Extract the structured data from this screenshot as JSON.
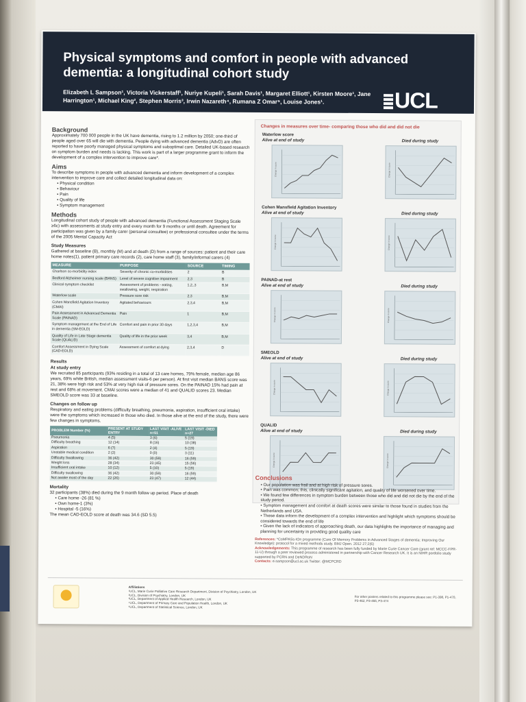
{
  "poster": {
    "title": "Physical symptoms and comfort in people with advanced dementia: a longitudinal cohort study",
    "authors": "Elizabeth L Sampson¹, Victoria Vickerstaff¹, Nuriye Kupeli¹, Sarah Davis¹, Margaret Elliott¹, Kirsten Moore¹, Jane Harrington¹, Michael King², Stephen Morris³, Irwin Nazareth⁴, Rumana Z Omar⁵, Louise Jones¹.",
    "logo": "UCL"
  },
  "background": {
    "heading": "Background",
    "text": "Approximately 700 000 people in the UK have dementia, rising to 1.2 million by 2050; one-third of people aged over 65 will die with dementia. People dying with advanced dementia (AdvD) are often reported to have poorly managed physical symptoms and suboptimal care. Detailed UK-based research on symptom burden and needs is lacking. This work is part of a larger programme grant to inform the development of a complex intervention to improve care*."
  },
  "aims": {
    "heading": "Aims",
    "text": "To describe symptoms in people with advanced dementia and inform development of a complex intervention to improve care and collect detailed longitudinal data on:",
    "items": [
      "Physical condition",
      "Behaviour",
      "Pain",
      "Quality of life",
      "Symptom management"
    ]
  },
  "methods": {
    "heading": "Methods",
    "text": "Longitudinal cohort study of people with advanced dementia (Functional Assessment Staging Scale ≥6c) with assessments at study entry and every month for 9 months or until death. Agreement for participation was given by a family carer (personal consultee) or professional consultee under the terms of the 2005 Mental Capacity Act",
    "measures_heading": "Study Measures",
    "measures_text": "Gathered at baseline (B), monthly (M) and at death (D) from a range of sources: patient and their care home notes(1), patient primary care records (2), care home staff (3), family/informal carers (4)",
    "table_headers": [
      "MEASURE",
      "PURPOSE",
      "SOURCE",
      "TIMING"
    ],
    "table_rows": [
      [
        "Charlson co-morbidity index",
        "Severity of chronic co-morbidities",
        "2",
        "B"
      ],
      [
        "Bedford Alzheimer nursing scale (BANS)",
        "Level of severe cognitive impairment",
        "2,3",
        "B"
      ],
      [
        "Clinical symptom checklist",
        "Assessment of problems - eating, swallowing, weight, respiration",
        "1,2,,3",
        "B,M"
      ],
      [
        "Waterlow scale",
        "Pressure sore risk",
        "2,3",
        "B,M"
      ],
      [
        "Cohen Mansfield Agitation Inventory (CMAI)",
        "Agitated behaviours",
        "2,3,4",
        "B,M"
      ],
      [
        "Pain Assessment in Advanced Dementia Scale (PAINAD)",
        "Pain",
        "1",
        "B,M"
      ],
      [
        "Symptom management at the End of Life in dementia (SM-EOLD)",
        "Comfort and pain in prior 30 days",
        "1,2,3,4",
        "B,M"
      ],
      [
        "Quality of Life in Late Stage dementia Scale (QUALID)",
        "Quality of life in the prior week",
        "3,4",
        "B,M"
      ],
      [
        "Comfort Assessment in Dying Scale (CAD-EOLD)",
        "Assessment of comfort at dying",
        "2,3,4",
        "D"
      ]
    ]
  },
  "results": {
    "heading": "Results",
    "entry_heading": "At study entry",
    "entry_text": "We recruited 85 participants (93% residing in a total of 13 care homes, 79% female, median age 86 years, 69% white British, median assessment visits-6 per person). At first visit median BANS score was 21, 38% were high risk and 53% at very high risk of pressure sores. On the PAINAD 15% had pain at rest and 68% at movement. CMAI scores were a median of 41 and QUALID scores 23. Median SMEOLD score was 33 at baseline.",
    "changes_heading": "Changes on follow up",
    "changes_text": "Respiratory and eating problems (difficulty breathing, pneumonia, aspiration, insufficient oral intake) were the symptoms which increased in those who died. In those alive at the end of the study, there were few changes in symptoms.",
    "table_headers": [
      "PROBLEM Number (%)",
      "PRESENT AT STUDY ENTRY",
      "LAST VISIT -ALIVE n=51",
      "LAST VISIT -DIED n=27"
    ],
    "table_rows": [
      [
        "Pneumonia",
        "4 (5)",
        "3 (6)",
        "5 (19)"
      ],
      [
        "Difficulty breathing",
        "12 (14)",
        "8 (16)",
        "10 (38)"
      ],
      [
        "Aspiration",
        "6 (7)",
        "2 (4)",
        "5 (19)"
      ],
      [
        "Unstable medical condition",
        "2 (2)",
        "0 (0)",
        "3 (11)"
      ],
      [
        "Difficulty Swallowing",
        "36 (42)",
        "30 (59)",
        "16 (59)"
      ],
      [
        "Weight loss",
        "28 (34)",
        "23 (45)",
        "15 (56)"
      ],
      [
        "Insufficient oral intake",
        "10 (12)",
        "5 (10)",
        "5 (19)"
      ],
      [
        "Difficulty swallowing",
        "36 (42)",
        "30 (59)",
        "16 (59)"
      ],
      [
        "Not awake most of the day",
        "22 (26)",
        "23 (47)",
        "12 (44)"
      ]
    ],
    "mortality_heading": "Mortality",
    "mortality_text": "32 participants (38%) died during the 9 month follow up period. Place of death",
    "mortality_items": [
      "Care home -26 (81 %)",
      "Own home-1 (3%)",
      "Hospital -5 (16%)"
    ],
    "mortality_footer": "The mean CAD-EOLD score at death was 34.6 (SD 5.5)"
  },
  "charts": {
    "panel_title": "Changes in measures over time- comparing those who did and did not die",
    "alive_label": "Alive at end of study",
    "died_label": "Died during study",
    "y_axis_label": "Change in score"
  },
  "chart_data": [
    {
      "type": "line",
      "title": "Waterlow score",
      "subtitle": "Alive at end of study",
      "values": [
        1,
        3,
        4,
        6,
        6,
        8,
        9,
        12,
        14,
        13
      ]
    },
    {
      "type": "line",
      "title": "",
      "subtitle": "Died during study",
      "values": [
        6,
        4,
        3,
        2,
        4,
        6,
        8,
        7
      ]
    },
    {
      "type": "line",
      "title": "Cohen Mansfield Agitation Inventory",
      "subtitle": "Alive at end of study",
      "values": [
        7,
        7,
        12,
        10,
        9,
        12,
        7,
        5,
        1
      ]
    },
    {
      "type": "line",
      "title": "",
      "subtitle": "Died during study",
      "values": [
        9,
        2,
        8,
        5,
        9,
        11,
        3
      ]
    },
    {
      "type": "line",
      "title": "PAINAD-at rest",
      "subtitle": "Alive at end of study",
      "values": [
        5,
        5.2,
        5.1,
        5.3,
        5.2,
        5.3,
        5.4,
        5.4
      ]
    },
    {
      "type": "line",
      "title": "",
      "subtitle": "Died during study",
      "values": [
        6.2,
        5.9,
        5.7,
        5.6,
        5.4,
        5.5,
        5.8
      ]
    },
    {
      "type": "line",
      "title": "SMEOLD",
      "subtitle": "Alive at end of study",
      "values": [
        7,
        7,
        6,
        5,
        5,
        3,
        5,
        4
      ]
    },
    {
      "type": "line",
      "title": "",
      "subtitle": "Died during study",
      "values": [
        3,
        7,
        8,
        8,
        7,
        3,
        4
      ]
    },
    {
      "type": "line",
      "title": "QUALID",
      "subtitle": "Alive at end of study",
      "values": [
        6,
        7,
        7,
        8,
        7,
        7,
        8,
        8
      ]
    },
    {
      "type": "line",
      "title": "",
      "subtitle": "Died during study",
      "values": [
        3,
        5,
        6,
        6,
        6,
        6,
        9,
        8
      ]
    }
  ],
  "conclusions": {
    "heading": "Conclusions",
    "items": [
      "Our population was frail and at high risk of pressure sores.",
      "Pain was common; this, clinically significant agitation, and quality of life worsened over time.",
      "We found few differences in symptom burden between those who did and did not die by the end of the study period.",
      "Symptom management and comfort at death scores were similar to those found in studies from the Netherlands and USA.",
      "These data inform the development of a complex intervention and highlight which symptoms should be considered towards the end of life",
      "Given the lack of indicators of approaching death, our data highlights the importance of managing and planning for uncertainty in providing good quality care"
    ],
    "references_label": "References:",
    "references_text": "*CoMPASs-IOn programme (Care Of Memory Problems in Advanced Stages of dementia: Improving Our Knowledge): protocol for a mixed methods study. BMJ Open. 2012 27;2(6)",
    "ack_label": "Acknowledgements:",
    "ack_text": "This programme of research has been fully funded by Marie Curie Cancer Care (grant ref: MCCC-FPR-11-U) through a peer reviewed process administered in partnership with Cancer Research UK. It is an NIHR portfolio study supported by PCRN and DeNDRoN",
    "contacts_label": "Contacts:",
    "contacts_text": "e.sampson@ucl.ac.uk   Twitter: @MCPCRD"
  },
  "footer": {
    "affiliations_label": "Affiliations",
    "affiliations": [
      "¹UCL, Marie Curie Palliative Care Research Department, Division of Psychiatry, London, UK",
      "²UCL, Division of Psychiatry, London, UK",
      "³UCL, Department of Applied Health Research, London, UK",
      "⁴UCL, Department of Primary Care and Population Health, London, UK",
      "⁵UCL, Department of Statistical Science, London, UK"
    ],
    "other_posters": "For other posters related to this programme please see: P1-398, P1-470, P3-462, P3-466, P3-474"
  },
  "colors": {
    "banner": "#1e2735",
    "accent": "#c0504d",
    "table_header": "#6f9a98",
    "chart_bg": "#d9e2e6",
    "chart_line": "#555555"
  }
}
